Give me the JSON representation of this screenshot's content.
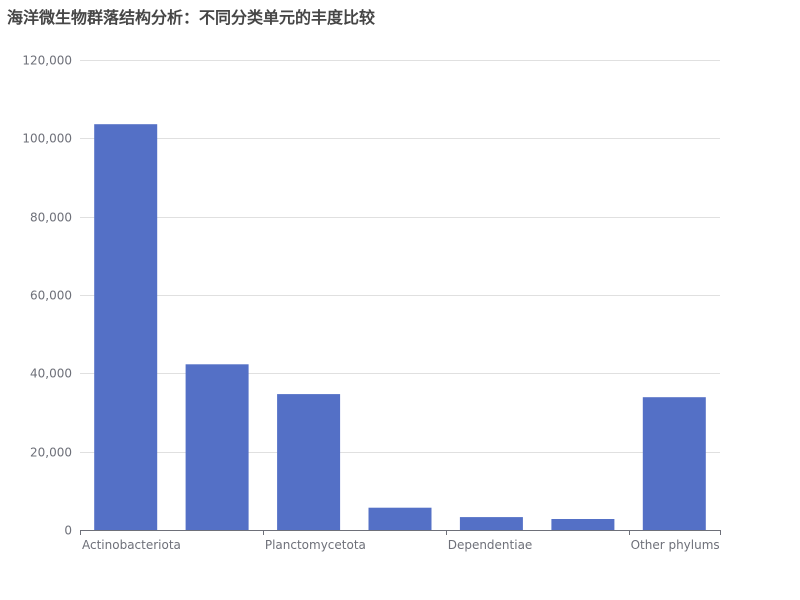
{
  "chart_data": {
    "type": "bar",
    "title": "海洋微生物群落结构分析：不同分类单元的丰度比较",
    "xlabel": "",
    "ylabel": "",
    "categories": [
      "Actinobacteriota",
      "",
      "Planctomycetota",
      "",
      "Dependentiae",
      "",
      "Other phylums"
    ],
    "values": [
      103600,
      42300,
      34700,
      5700,
      3300,
      2800,
      33900
    ],
    "ylim": [
      0,
      120000
    ],
    "yticks": [
      0,
      20000,
      40000,
      60000,
      80000,
      100000,
      120000
    ],
    "ytick_labels": [
      "0",
      "20,000",
      "40,000",
      "60,000",
      "80,000",
      "100,000",
      "120,000"
    ],
    "xtick_labels": [
      "Actinobacteriota",
      "Planctomycetota",
      "Dependentiae",
      "Other phylums"
    ],
    "grid": true,
    "legend": "none",
    "colors": {
      "bar": "#5470c6",
      "axis": "#6e7079",
      "grid": "#e0e0e0",
      "title": "#464646"
    }
  }
}
